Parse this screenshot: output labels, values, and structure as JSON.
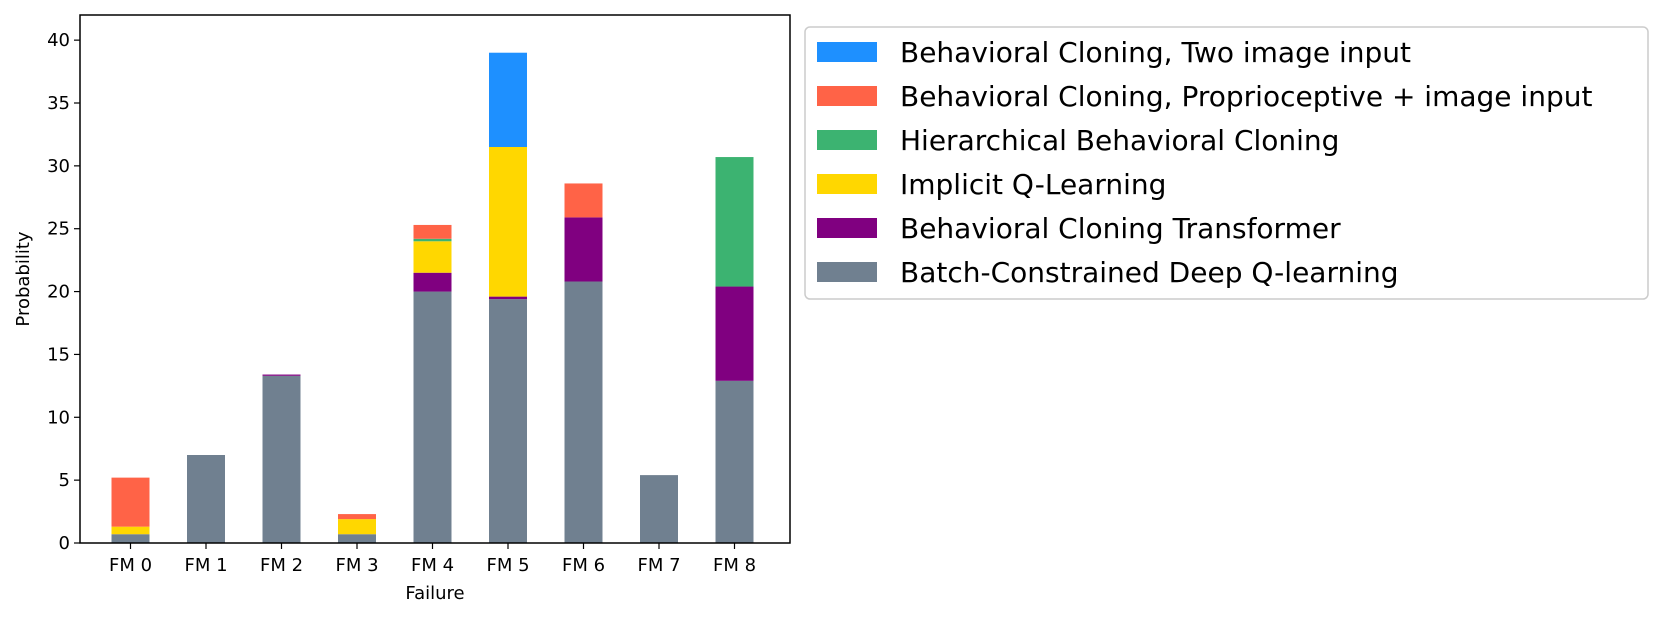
{
  "chart_data": {
    "type": "bar",
    "stacked": true,
    "title": "",
    "xlabel": "Failure",
    "ylabel": "Probability",
    "ylim": [
      0,
      42
    ],
    "yticks": [
      0,
      5,
      10,
      15,
      20,
      25,
      30,
      35,
      40
    ],
    "categories": [
      "FM 0",
      "FM 1",
      "FM 2",
      "FM 3",
      "FM 4",
      "FM 5",
      "FM 6",
      "FM 7",
      "FM 8"
    ],
    "legend_position": "outside-top-right",
    "series": [
      {
        "name": "Batch-Constrained Deep Q-learning",
        "color": "#708090",
        "values": [
          0.7,
          7.0,
          13.3,
          0.7,
          20.0,
          19.4,
          20.8,
          5.4,
          12.9
        ]
      },
      {
        "name": "Behavioral Cloning Transformer",
        "color": "#800080",
        "values": [
          0.0,
          0.0,
          0.1,
          0.0,
          1.5,
          0.2,
          5.1,
          0.0,
          7.5
        ]
      },
      {
        "name": "Implicit Q-Learning",
        "color": "#FFD700",
        "values": [
          0.6,
          0.0,
          0.0,
          1.2,
          2.5,
          11.9,
          0.0,
          0.0,
          0.0
        ]
      },
      {
        "name": "Hierarchical Behavioral Cloning",
        "color": "#3CB371",
        "values": [
          0.0,
          0.0,
          0.0,
          0.0,
          0.2,
          0.0,
          0.0,
          0.0,
          10.3
        ]
      },
      {
        "name": "Behavioral Cloning, Proprioceptive + image input",
        "color": "#FF6347",
        "values": [
          3.9,
          0.0,
          0.0,
          0.4,
          1.1,
          0.0,
          2.7,
          0.0,
          0.0
        ]
      },
      {
        "name": "Behavioral Cloning, Two image input",
        "color": "#1E90FF",
        "values": [
          0.0,
          0.0,
          0.0,
          0.0,
          0.0,
          7.5,
          0.0,
          0.0,
          0.0
        ]
      }
    ],
    "legend_order": [
      "Behavioral Cloning, Two image input",
      "Behavioral Cloning, Proprioceptive + image input",
      "Hierarchical Behavioral Cloning",
      "Implicit Q-Learning",
      "Behavioral Cloning Transformer",
      "Batch-Constrained Deep Q-learning"
    ]
  }
}
